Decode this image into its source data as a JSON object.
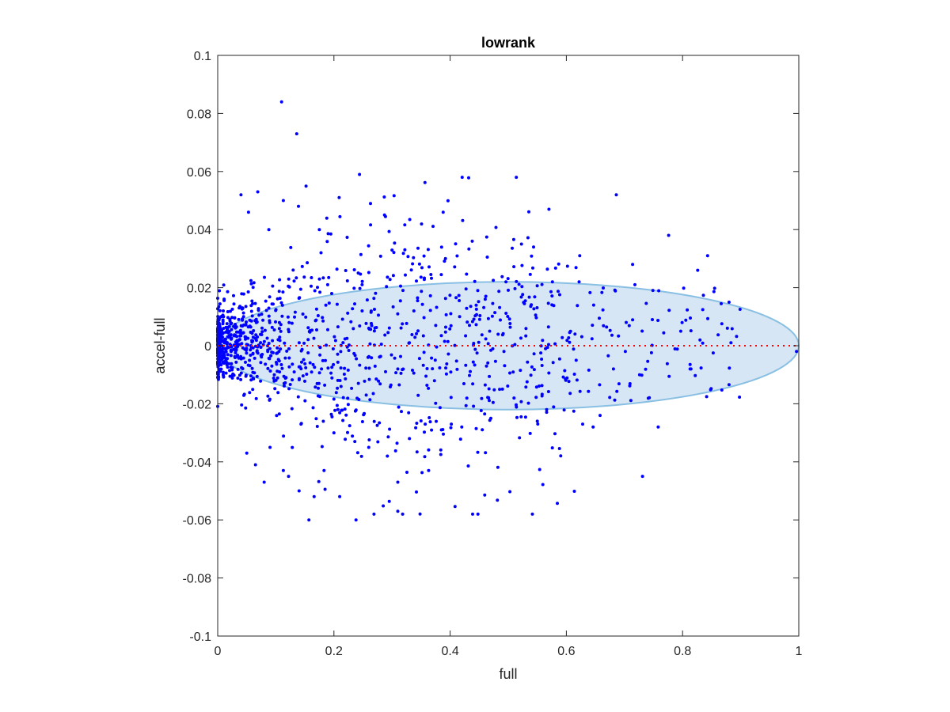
{
  "chart_data": {
    "type": "scatter",
    "title": "lowrank",
    "xlabel": "full",
    "ylabel": "accel-full",
    "xlim": [
      0,
      1
    ],
    "ylim": [
      -0.1,
      0.1
    ],
    "xticks": [
      "0",
      "0.2",
      "0.4",
      "0.6",
      "0.8",
      "1"
    ],
    "yticks": [
      "-0.1",
      "-0.08",
      "-0.06",
      "-0.04",
      "-0.02",
      "0",
      "0.02",
      "0.04",
      "0.06",
      "0.08",
      "0.1"
    ],
    "grid": false,
    "reference_line": {
      "y": 0,
      "style": "dotted",
      "color": "#ff0000"
    },
    "ellipse": {
      "center_x": 0.5,
      "center_y": 0,
      "semi_x": 0.5,
      "semi_y": 0.022,
      "fill": "#d6e6f4",
      "stroke": "#88bfe3"
    },
    "marker_color": "#0000ff",
    "points": [
      [
        0.11,
        0.084
      ],
      [
        0.136,
        0.073
      ],
      [
        0.244,
        0.059
      ],
      [
        0.152,
        0.055
      ],
      [
        0.069,
        0.053
      ],
      [
        0.04,
        0.052
      ],
      [
        0.209,
        0.051
      ],
      [
        0.686,
        0.052
      ],
      [
        0.57,
        0.047
      ],
      [
        0.388,
        0.046
      ],
      [
        0.263,
        0.049
      ],
      [
        0.113,
        0.05
      ],
      [
        0.139,
        0.048
      ],
      [
        0.053,
        0.046
      ],
      [
        0.287,
        0.045
      ],
      [
        0.175,
        0.04
      ],
      [
        0.088,
        0.04
      ],
      [
        0.438,
        0.036
      ],
      [
        0.776,
        0.038
      ],
      [
        0.843,
        0.031
      ],
      [
        0.623,
        0.031
      ],
      [
        0.392,
        0.03
      ],
      [
        0.714,
        0.028
      ],
      [
        0.826,
        0.026
      ],
      [
        0.622,
        0.022
      ],
      [
        0.496,
        0.022
      ],
      [
        0.576,
        0.022
      ],
      [
        0.718,
        0.021
      ],
      [
        0.88,
        0.015
      ],
      [
        0.647,
        0.014
      ],
      [
        0.703,
        0.008
      ],
      [
        0.748,
        0.009
      ],
      [
        0.83,
        0.002
      ],
      [
        0.996,
        -0.002
      ],
      [
        0.813,
        -0.008
      ],
      [
        0.726,
        -0.01
      ],
      [
        0.681,
        -0.008
      ],
      [
        0.758,
        -0.028
      ],
      [
        0.731,
        -0.045
      ],
      [
        0.658,
        -0.024
      ],
      [
        0.646,
        -0.028
      ],
      [
        0.628,
        -0.027
      ],
      [
        0.55,
        -0.026
      ],
      [
        0.51,
        -0.018
      ],
      [
        0.47,
        -0.025
      ],
      [
        0.42,
        -0.028
      ],
      [
        0.402,
        -0.027
      ],
      [
        0.385,
        -0.029
      ],
      [
        0.363,
        -0.043
      ],
      [
        0.31,
        -0.047
      ],
      [
        0.31,
        -0.057
      ],
      [
        0.238,
        -0.06
      ],
      [
        0.21,
        -0.052
      ],
      [
        0.157,
        -0.06
      ],
      [
        0.166,
        -0.052
      ],
      [
        0.14,
        -0.05
      ],
      [
        0.122,
        -0.045
      ],
      [
        0.113,
        -0.043
      ],
      [
        0.08,
        -0.047
      ],
      [
        0.183,
        -0.043
      ],
      [
        0.26,
        -0.035
      ],
      [
        0.292,
        -0.038
      ],
      [
        0.05,
        -0.037
      ],
      [
        0.065,
        -0.041
      ],
      [
        0.09,
        -0.035
      ],
      [
        0.2,
        -0.03
      ],
      [
        0.236,
        -0.033
      ],
      [
        0.33,
        -0.032
      ]
    ]
  }
}
